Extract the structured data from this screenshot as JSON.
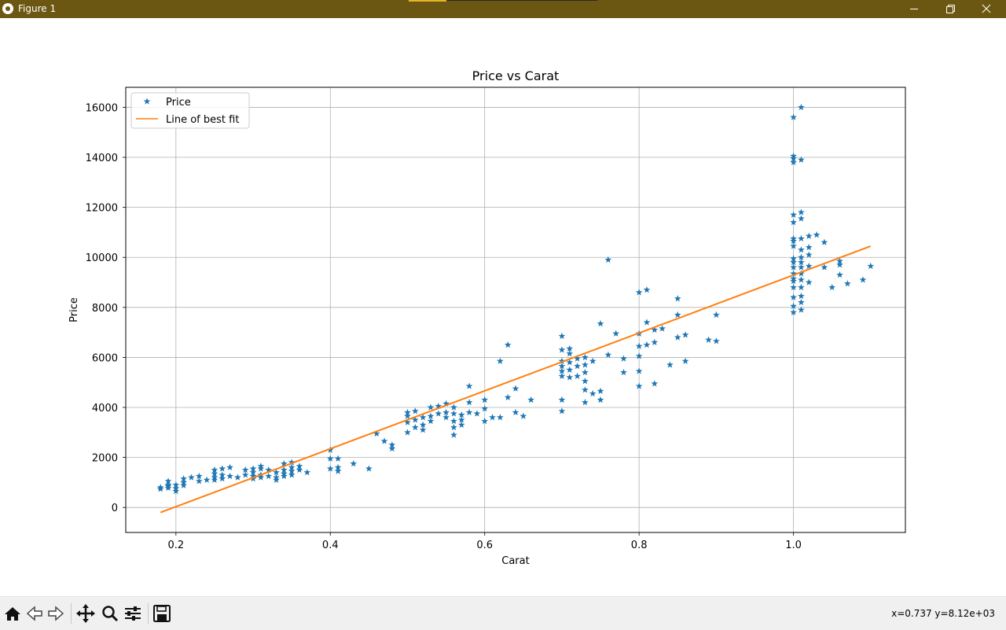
{
  "window": {
    "title": "Figure 1"
  },
  "toolbar": {
    "buttons": [
      {
        "name": "home-icon"
      },
      {
        "name": "back-icon"
      },
      {
        "name": "forward-icon"
      },
      {
        "name": "pan-icon"
      },
      {
        "name": "zoom-icon"
      },
      {
        "name": "configure-subplots-icon"
      },
      {
        "name": "save-icon"
      }
    ],
    "coords_text": "x=0.737 y=8.12e+03"
  },
  "chart_data": {
    "type": "scatter",
    "title": "Price vs Carat",
    "xlabel": "Carat",
    "ylabel": "Price",
    "xlim": [
      0.135,
      1.145
    ],
    "ylim": [
      -1000,
      16800
    ],
    "xticks": [
      0.2,
      0.4,
      0.6,
      0.8,
      1.0
    ],
    "xtick_labels": [
      "0.2",
      "0.4",
      "0.6",
      "0.8",
      "1.0"
    ],
    "yticks": [
      0,
      2000,
      4000,
      6000,
      8000,
      10000,
      12000,
      14000,
      16000
    ],
    "ytick_labels": [
      "0",
      "2000",
      "4000",
      "6000",
      "8000",
      "10000",
      "12000",
      "14000",
      "16000"
    ],
    "grid": true,
    "legend": {
      "position": "top-left"
    },
    "colors": {
      "scatter": "#1f77b4",
      "line": "#ff7f0e"
    },
    "series": [
      {
        "name": "Price",
        "kind": "scatter",
        "marker": "star",
        "points": [
          [
            0.18,
            800
          ],
          [
            0.18,
            740
          ],
          [
            0.19,
            900
          ],
          [
            0.19,
            1050
          ],
          [
            0.19,
            780
          ],
          [
            0.19,
            850
          ],
          [
            0.2,
            650
          ],
          [
            0.2,
            760
          ],
          [
            0.2,
            900
          ],
          [
            0.21,
            1000
          ],
          [
            0.21,
            1150
          ],
          [
            0.21,
            880
          ],
          [
            0.22,
            1200
          ],
          [
            0.23,
            1050
          ],
          [
            0.23,
            1250
          ],
          [
            0.24,
            1100
          ],
          [
            0.25,
            1500
          ],
          [
            0.25,
            1350
          ],
          [
            0.25,
            1200
          ],
          [
            0.25,
            1100
          ],
          [
            0.26,
            1550
          ],
          [
            0.26,
            1300
          ],
          [
            0.26,
            1150
          ],
          [
            0.27,
            1600
          ],
          [
            0.27,
            1250
          ],
          [
            0.28,
            1200
          ],
          [
            0.29,
            1500
          ],
          [
            0.29,
            1300
          ],
          [
            0.3,
            1550
          ],
          [
            0.3,
            1400
          ],
          [
            0.3,
            1250
          ],
          [
            0.3,
            1150
          ],
          [
            0.31,
            1650
          ],
          [
            0.31,
            1550
          ],
          [
            0.31,
            1300
          ],
          [
            0.31,
            1200
          ],
          [
            0.32,
            1500
          ],
          [
            0.32,
            1250
          ],
          [
            0.33,
            1400
          ],
          [
            0.33,
            1200
          ],
          [
            0.33,
            1100
          ],
          [
            0.34,
            1750
          ],
          [
            0.34,
            1500
          ],
          [
            0.34,
            1350
          ],
          [
            0.34,
            1250
          ],
          [
            0.35,
            1800
          ],
          [
            0.35,
            1600
          ],
          [
            0.35,
            1450
          ],
          [
            0.35,
            1300
          ],
          [
            0.36,
            1650
          ],
          [
            0.36,
            1500
          ],
          [
            0.37,
            1400
          ],
          [
            0.4,
            2300
          ],
          [
            0.4,
            1950
          ],
          [
            0.4,
            1550
          ],
          [
            0.41,
            1950
          ],
          [
            0.41,
            1600
          ],
          [
            0.41,
            1450
          ],
          [
            0.43,
            1750
          ],
          [
            0.45,
            1550
          ],
          [
            0.46,
            2950
          ],
          [
            0.47,
            2650
          ],
          [
            0.48,
            2500
          ],
          [
            0.48,
            2350
          ],
          [
            0.5,
            3800
          ],
          [
            0.5,
            3650
          ],
          [
            0.5,
            3400
          ],
          [
            0.5,
            3000
          ],
          [
            0.51,
            3500
          ],
          [
            0.51,
            3200
          ],
          [
            0.51,
            3850
          ],
          [
            0.52,
            3600
          ],
          [
            0.52,
            3300
          ],
          [
            0.52,
            3100
          ],
          [
            0.53,
            4000
          ],
          [
            0.53,
            3650
          ],
          [
            0.53,
            3450
          ],
          [
            0.54,
            3750
          ],
          [
            0.54,
            4050
          ],
          [
            0.55,
            4150
          ],
          [
            0.55,
            3800
          ],
          [
            0.55,
            3600
          ],
          [
            0.56,
            4000
          ],
          [
            0.56,
            3750
          ],
          [
            0.56,
            3450
          ],
          [
            0.56,
            3200
          ],
          [
            0.56,
            2900
          ],
          [
            0.57,
            3700
          ],
          [
            0.57,
            3500
          ],
          [
            0.57,
            3300
          ],
          [
            0.58,
            4850
          ],
          [
            0.58,
            4200
          ],
          [
            0.58,
            3800
          ],
          [
            0.59,
            3750
          ],
          [
            0.6,
            4300
          ],
          [
            0.6,
            3950
          ],
          [
            0.6,
            3450
          ],
          [
            0.61,
            3600
          ],
          [
            0.62,
            5850
          ],
          [
            0.62,
            3600
          ],
          [
            0.63,
            6500
          ],
          [
            0.63,
            4400
          ],
          [
            0.64,
            4750
          ],
          [
            0.64,
            3800
          ],
          [
            0.65,
            3650
          ],
          [
            0.66,
            4300
          ],
          [
            0.7,
            6850
          ],
          [
            0.7,
            6300
          ],
          [
            0.7,
            5850
          ],
          [
            0.7,
            5650
          ],
          [
            0.7,
            5450
          ],
          [
            0.7,
            5250
          ],
          [
            0.7,
            4300
          ],
          [
            0.7,
            3850
          ],
          [
            0.71,
            6350
          ],
          [
            0.71,
            6150
          ],
          [
            0.71,
            5800
          ],
          [
            0.71,
            5500
          ],
          [
            0.71,
            5200
          ],
          [
            0.72,
            5950
          ],
          [
            0.72,
            5650
          ],
          [
            0.72,
            5250
          ],
          [
            0.73,
            6000
          ],
          [
            0.73,
            5700
          ],
          [
            0.73,
            5400
          ],
          [
            0.73,
            5050
          ],
          [
            0.73,
            4700
          ],
          [
            0.73,
            4200
          ],
          [
            0.74,
            5850
          ],
          [
            0.74,
            4550
          ],
          [
            0.75,
            7350
          ],
          [
            0.75,
            4650
          ],
          [
            0.75,
            4300
          ],
          [
            0.76,
            6100
          ],
          [
            0.76,
            9900
          ],
          [
            0.77,
            6950
          ],
          [
            0.78,
            5950
          ],
          [
            0.78,
            5400
          ],
          [
            0.8,
            8600
          ],
          [
            0.8,
            6950
          ],
          [
            0.8,
            6450
          ],
          [
            0.8,
            6050
          ],
          [
            0.8,
            5450
          ],
          [
            0.8,
            4850
          ],
          [
            0.81,
            8700
          ],
          [
            0.81,
            7400
          ],
          [
            0.81,
            6500
          ],
          [
            0.82,
            7100
          ],
          [
            0.82,
            6600
          ],
          [
            0.82,
            4950
          ],
          [
            0.83,
            7150
          ],
          [
            0.84,
            5700
          ],
          [
            0.85,
            8350
          ],
          [
            0.85,
            7700
          ],
          [
            0.85,
            6800
          ],
          [
            0.86,
            6900
          ],
          [
            0.86,
            5850
          ],
          [
            0.89,
            6700
          ],
          [
            0.9,
            7700
          ],
          [
            0.9,
            6650
          ],
          [
            1.0,
            15600
          ],
          [
            1.0,
            14050
          ],
          [
            1.0,
            13950
          ],
          [
            1.0,
            13800
          ],
          [
            1.0,
            11700
          ],
          [
            1.0,
            11400
          ],
          [
            1.0,
            10750
          ],
          [
            1.0,
            10650
          ],
          [
            1.0,
            10450
          ],
          [
            1.0,
            9950
          ],
          [
            1.0,
            9800
          ],
          [
            1.0,
            9600
          ],
          [
            1.0,
            9350
          ],
          [
            1.0,
            9150
          ],
          [
            1.0,
            9050
          ],
          [
            1.0,
            8800
          ],
          [
            1.0,
            8400
          ],
          [
            1.0,
            8050
          ],
          [
            1.0,
            7800
          ],
          [
            1.01,
            16000
          ],
          [
            1.01,
            13900
          ],
          [
            1.01,
            11800
          ],
          [
            1.01,
            11550
          ],
          [
            1.01,
            10750
          ],
          [
            1.01,
            10300
          ],
          [
            1.01,
            10000
          ],
          [
            1.01,
            9800
          ],
          [
            1.01,
            9600
          ],
          [
            1.01,
            9350
          ],
          [
            1.01,
            9100
          ],
          [
            1.01,
            8800
          ],
          [
            1.01,
            8450
          ],
          [
            1.01,
            8200
          ],
          [
            1.01,
            7900
          ],
          [
            1.02,
            10850
          ],
          [
            1.02,
            10400
          ],
          [
            1.02,
            10100
          ],
          [
            1.02,
            9650
          ],
          [
            1.02,
            9000
          ],
          [
            1.03,
            10900
          ],
          [
            1.04,
            10600
          ],
          [
            1.04,
            9600
          ],
          [
            1.05,
            8800
          ],
          [
            1.06,
            9850
          ],
          [
            1.06,
            9700
          ],
          [
            1.06,
            9300
          ],
          [
            1.07,
            8950
          ],
          [
            1.09,
            9100
          ],
          [
            1.1,
            9650
          ]
        ]
      },
      {
        "name": "Line of best fit",
        "kind": "line",
        "points": [
          [
            0.18,
            -200
          ],
          [
            1.1,
            10450
          ]
        ]
      }
    ]
  }
}
